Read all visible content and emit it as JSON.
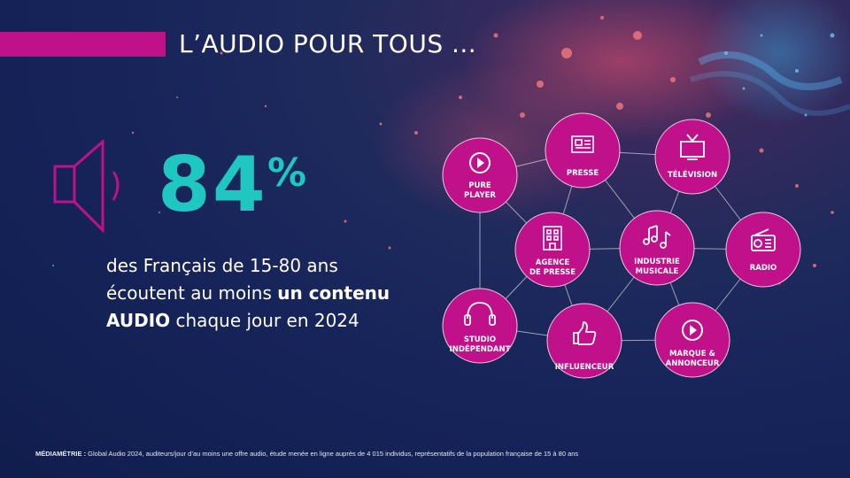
{
  "header": {
    "title": "L’AUDIO POUR TOUS ..."
  },
  "stat": {
    "number": "84",
    "unit": "%",
    "line1": "des Français de 15-80 ans",
    "line2_prefix": "écoutent au moins ",
    "line2_bold": "un contenu",
    "line3_bold": "AUDIO",
    "line3_suffix": " chaque jour en 2024"
  },
  "network": {
    "nodes": [
      {
        "id": "pure-player",
        "label": [
          "PURE",
          "PLAYER"
        ],
        "icon": "play-circle-icon"
      },
      {
        "id": "presse",
        "label": [
          "PRESSE"
        ],
        "icon": "newspaper-icon"
      },
      {
        "id": "television",
        "label": [
          "TÉLÉVISION"
        ],
        "icon": "tv-icon"
      },
      {
        "id": "agence-de-presse",
        "label": [
          "AGENCE",
          "DE PRESSE"
        ],
        "icon": "building-icon"
      },
      {
        "id": "industrie-musicale",
        "label": [
          "INDUSTRIE",
          "MUSICALE"
        ],
        "icon": "music-notes-icon"
      },
      {
        "id": "radio",
        "label": [
          "RADIO"
        ],
        "icon": "radio-icon"
      },
      {
        "id": "studio-independant",
        "label": [
          "STUDIO",
          "INDÉPENDANT"
        ],
        "icon": "headphones-icon"
      },
      {
        "id": "influenceur",
        "label": [
          "INFLUENCEUR"
        ],
        "icon": "thumbs-up-icon"
      },
      {
        "id": "marque-annonceur",
        "label": [
          "MARQUE &",
          "ANNONCEUR"
        ],
        "icon": "play-circle-icon"
      }
    ]
  },
  "footer": {
    "source": "MÉDIAMÉTRIE :",
    "text": " Global Audio 2024, auditeurs/jour d’au moins une offre audio, étude menée en ligne auprès de 4 015 individus, représentatifs de la population française de 15 à 80 ans"
  },
  "colors": {
    "accent": "#c0108a",
    "node": "#c0108a",
    "stat": "#1fc6c2",
    "background": "#16245a"
  }
}
